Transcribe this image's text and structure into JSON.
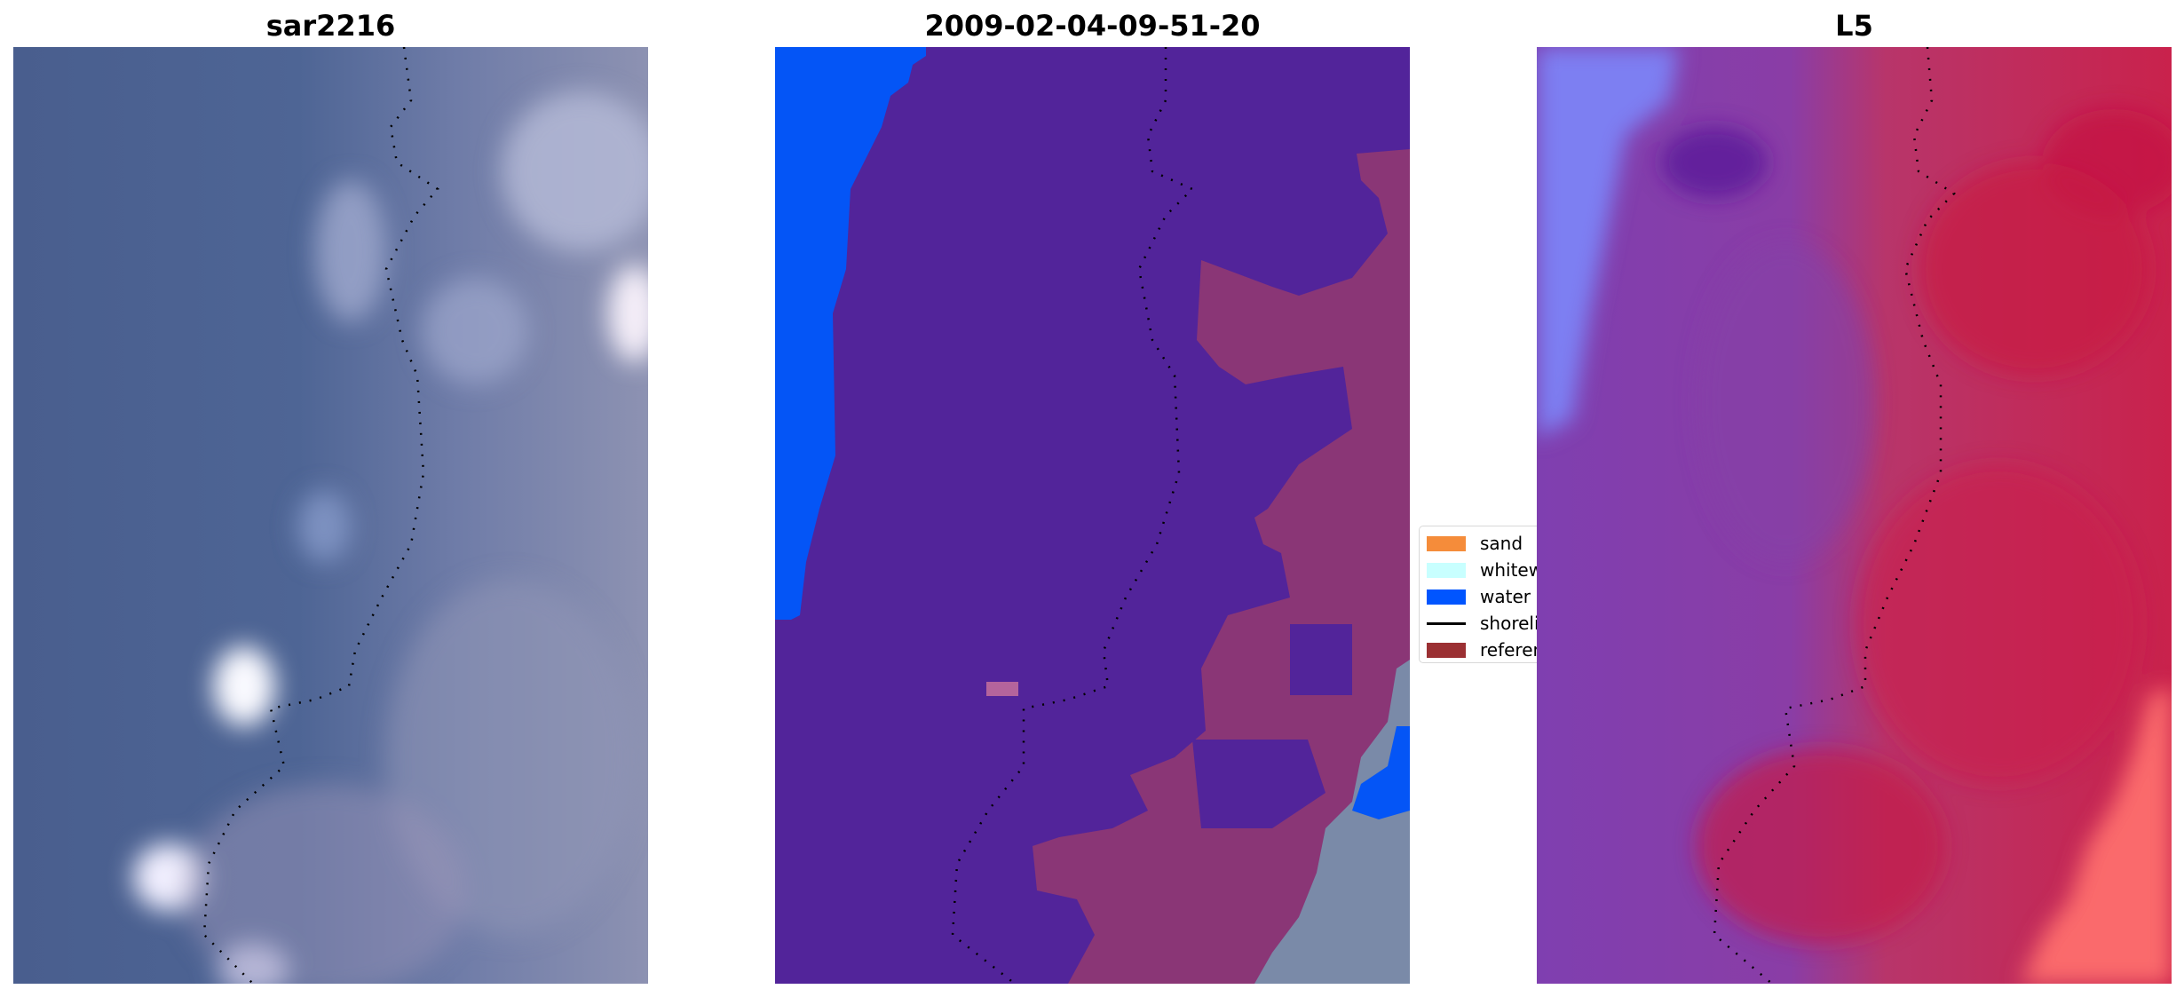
{
  "panels": [
    {
      "title": "sar2216"
    },
    {
      "title": "2009-02-04-09-51-20"
    },
    {
      "title": "L5"
    }
  ],
  "legend": {
    "items": [
      {
        "label": "sand",
        "color": "#f58c3a"
      },
      {
        "label": "whitewater",
        "color": "#c8ffff"
      },
      {
        "label": "water",
        "color": "#0055ff"
      },
      {
        "label": "shoreline",
        "color": "#000000"
      },
      {
        "label": "reference",
        "color": "#9b3033"
      }
    ]
  },
  "colors": {
    "rgb_water": "#4c6494",
    "class_background": "#52249a",
    "class_land": "#8a3676",
    "index_water": "#7d3fa8",
    "index_land": "#c5224e"
  }
}
